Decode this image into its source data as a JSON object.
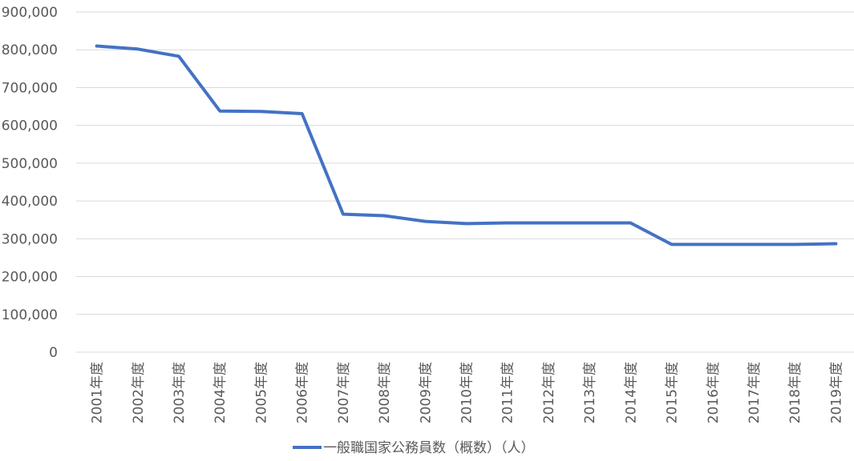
{
  "chart_data": {
    "type": "line",
    "title": "",
    "xlabel": "",
    "ylabel": "",
    "categories": [
      "2001年度",
      "2002年度",
      "2003年度",
      "2004年度",
      "2005年度",
      "2006年度",
      "2007年度",
      "2008年度",
      "2009年度",
      "2010年度",
      "2011年度",
      "2012年度",
      "2013年度",
      "2014年度",
      "2015年度",
      "2016年度",
      "2017年度",
      "2018年度",
      "2019年度"
    ],
    "series": [
      {
        "name": "一般職国家公務員数（概数）（人）",
        "color": "#4472C4",
        "values": [
          810000,
          802000,
          783000,
          638000,
          637000,
          631000,
          365000,
          361000,
          346000,
          340000,
          342000,
          342000,
          342000,
          342000,
          285000,
          285000,
          285000,
          285000,
          287000
        ]
      }
    ],
    "ylim": [
      0,
      900000
    ],
    "yticks": [
      0,
      100000,
      200000,
      300000,
      400000,
      500000,
      600000,
      700000,
      800000,
      900000
    ],
    "ytick_labels": [
      "0",
      "100,000",
      "200,000",
      "300,000",
      "400,000",
      "500,000",
      "600,000",
      "700,000",
      "800,000",
      "900,000"
    ],
    "grid": true,
    "legend_position": "bottom"
  }
}
